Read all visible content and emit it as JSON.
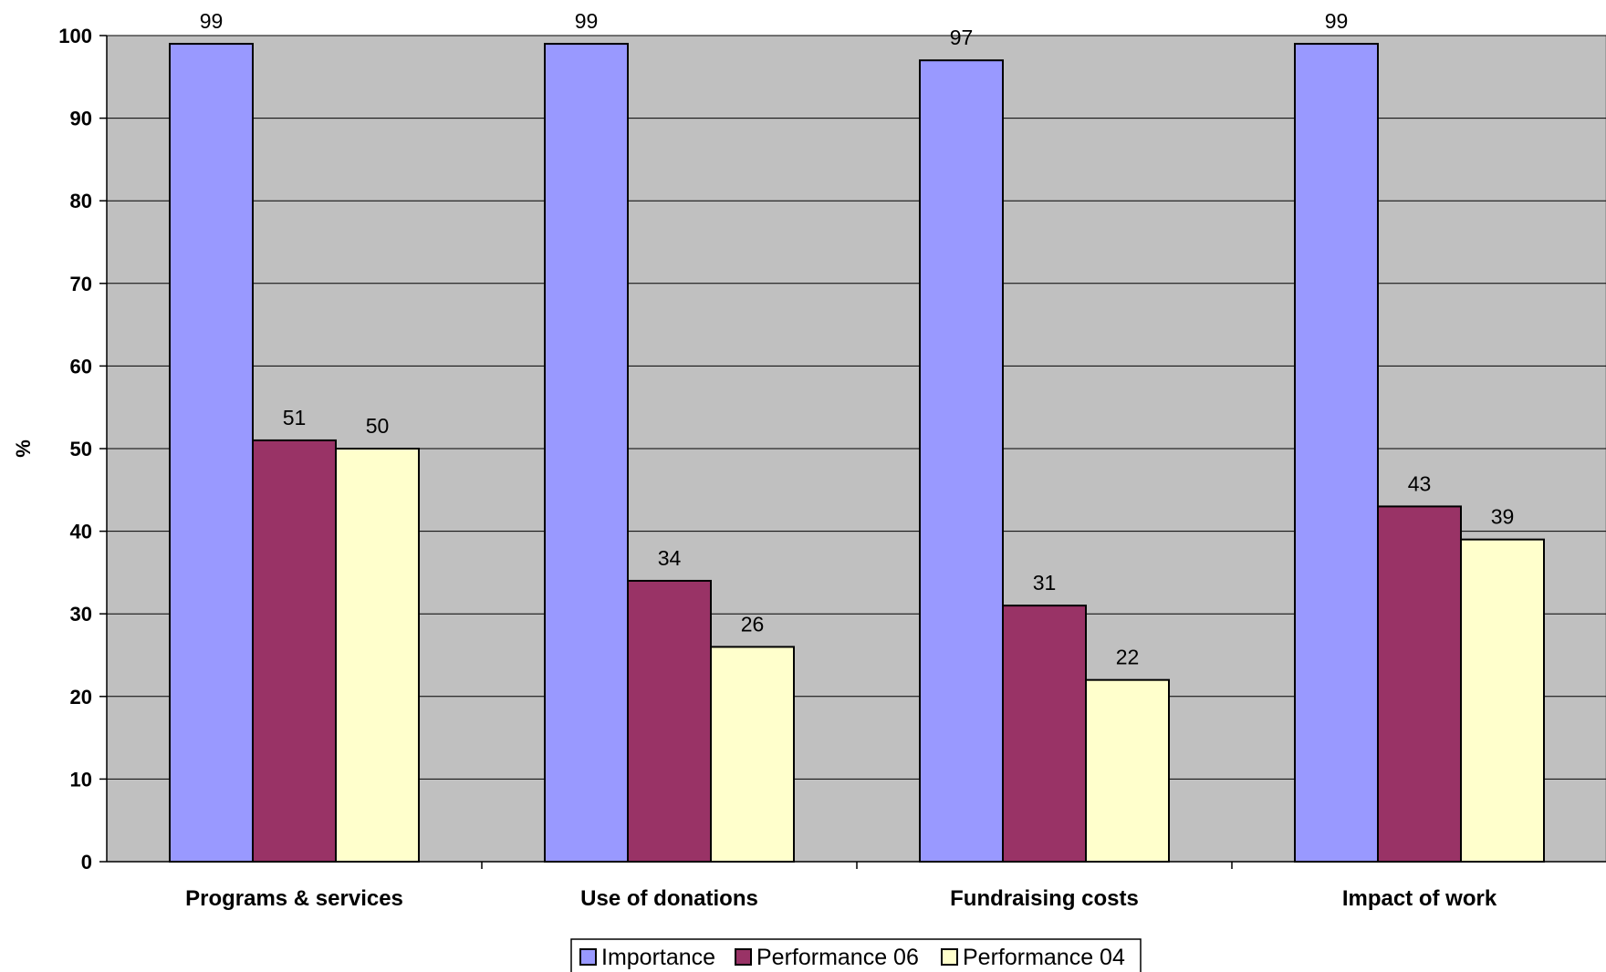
{
  "chart_data": {
    "type": "bar",
    "title": "",
    "xlabel": "",
    "ylabel": "%",
    "ylim": [
      0,
      100
    ],
    "yticks": [
      0,
      10,
      20,
      30,
      40,
      50,
      60,
      70,
      80,
      90,
      100
    ],
    "grid": true,
    "legend_position": "bottom",
    "categories": [
      "Programs & services",
      "Use of donations",
      "Fundraising costs",
      "Impact of work"
    ],
    "series": [
      {
        "name": "Importance",
        "values": [
          99,
          99,
          97,
          99
        ],
        "color": "#9999FF"
      },
      {
        "name": "Performance 06",
        "values": [
          51,
          34,
          31,
          43
        ],
        "color": "#993366"
      },
      {
        "name": "Performance 04",
        "values": [
          50,
          26,
          22,
          39
        ],
        "color": "#FFFFCC"
      }
    ],
    "plot_background": "#C0C0C0"
  }
}
